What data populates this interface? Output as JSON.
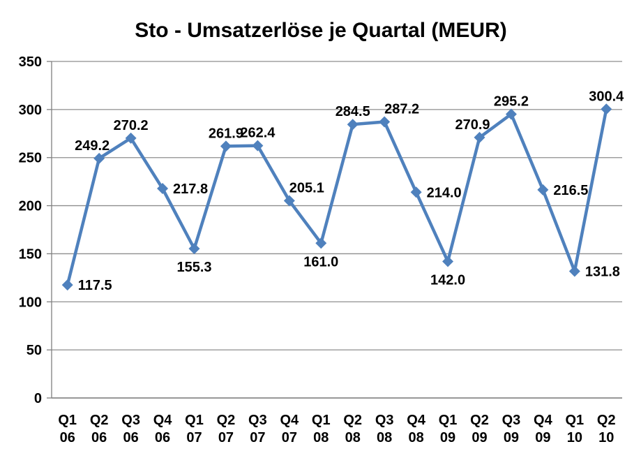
{
  "page": {
    "background": "#ffffff"
  },
  "chart_data": {
    "type": "line",
    "title": "Sto - Umsatzerlöse je Quartal (MEUR)",
    "categories": [
      "Q1 06",
      "Q2 06",
      "Q3 06",
      "Q4 06",
      "Q1 07",
      "Q2 07",
      "Q3 07",
      "Q4 07",
      "Q1 08",
      "Q2 08",
      "Q3 08",
      "Q4 08",
      "Q1 09",
      "Q2 09",
      "Q3 09",
      "Q4 09",
      "Q1 10",
      "Q2 10"
    ],
    "values": [
      117.5,
      249.2,
      270.2,
      217.8,
      155.3,
      261.9,
      262.4,
      205.1,
      161.0,
      284.5,
      287.2,
      214.0,
      142.0,
      270.9,
      295.2,
      216.5,
      131.8,
      300.4
    ],
    "xlabel": "",
    "ylabel": "",
    "ylim": [
      0,
      350
    ],
    "ytick_step": 50,
    "yticks": [
      0,
      50,
      100,
      150,
      200,
      250,
      300,
      350
    ],
    "grid": true,
    "legend": "none",
    "marker": "diamond",
    "data_labels_decimals": 1,
    "colors": {
      "series": "#4F81BD",
      "grid": "#8E8E8E",
      "axis": "#808080",
      "text": "#000000",
      "background": "#ffffff"
    },
    "label_placements": [
      "right",
      "above-left",
      "above",
      "right",
      "below",
      "above",
      "above",
      "above-right",
      "below",
      "above",
      "above-right",
      "right",
      "below",
      "above-left",
      "above",
      "right",
      "right",
      "above"
    ]
  }
}
